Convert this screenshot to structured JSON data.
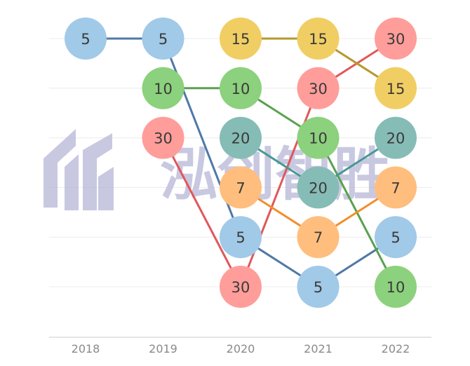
{
  "watermark": {
    "text": "泓创智胜"
  },
  "chart_data": {
    "type": "bump",
    "categories": [
      "2018",
      "2019",
      "2020",
      "2021",
      "2022"
    ],
    "series": [
      {
        "color": "#a1c9e8",
        "line_color": "#4e79a7",
        "points": [
          {
            "x": "2018",
            "rank": 1,
            "label": "5"
          },
          {
            "x": "2019",
            "rank": 1,
            "label": "5"
          },
          {
            "x": "2020",
            "rank": 5,
            "label": "5"
          },
          {
            "x": "2021",
            "rank": 6,
            "label": "5"
          },
          {
            "x": "2022",
            "rank": 5,
            "label": "5"
          }
        ]
      },
      {
        "color": "#8cd17d",
        "line_color": "#59a14f",
        "points": [
          {
            "x": "2019",
            "rank": 2,
            "label": "10"
          },
          {
            "x": "2020",
            "rank": 2,
            "label": "10"
          },
          {
            "x": "2021",
            "rank": 3,
            "label": "10"
          },
          {
            "x": "2022",
            "rank": 6,
            "label": "10"
          }
        ]
      },
      {
        "color": "#ff9d9a",
        "line_color": "#e15759",
        "points": [
          {
            "x": "2019",
            "rank": 3,
            "label": "30"
          },
          {
            "x": "2020",
            "rank": 6,
            "label": "30"
          },
          {
            "x": "2021",
            "rank": 2,
            "label": "30"
          },
          {
            "x": "2022",
            "rank": 1,
            "label": "30"
          }
        ]
      },
      {
        "color": "#f1ce63",
        "line_color": "#b6992d",
        "points": [
          {
            "x": "2020",
            "rank": 1,
            "label": "15"
          },
          {
            "x": "2021",
            "rank": 1,
            "label": "15"
          },
          {
            "x": "2022",
            "rank": 2,
            "label": "15"
          }
        ]
      },
      {
        "color": "#86bcb6",
        "line_color": "#499894",
        "points": [
          {
            "x": "2020",
            "rank": 3,
            "label": "20"
          },
          {
            "x": "2021",
            "rank": 4,
            "label": "20"
          },
          {
            "x": "2022",
            "rank": 3,
            "label": "20"
          }
        ]
      },
      {
        "color": "#ffbe7d",
        "line_color": "#f28e2b",
        "points": [
          {
            "x": "2020",
            "rank": 4,
            "label": "7"
          },
          {
            "x": "2021",
            "rank": 5,
            "label": "7"
          },
          {
            "x": "2022",
            "rank": 4,
            "label": "7"
          }
        ]
      }
    ],
    "y_rank_range": [
      1,
      6
    ],
    "grid": true,
    "legend": "none"
  }
}
